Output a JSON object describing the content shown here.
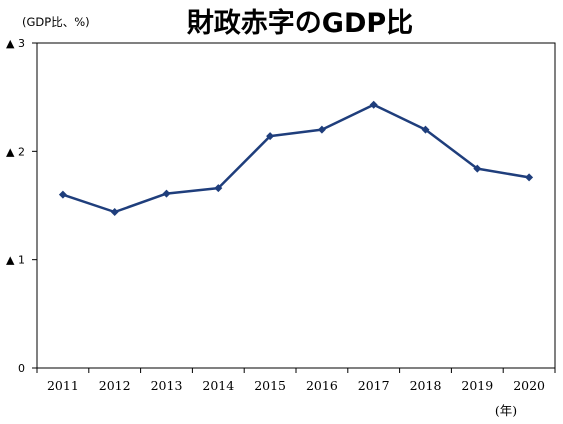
{
  "chart_data": {
    "type": "line",
    "title": "財政赤字のGDP比",
    "unit_label": "(GDP比、%)",
    "xlabel": "(年)",
    "ylabel": "",
    "x": [
      "2011",
      "2012",
      "2013",
      "2014",
      "2015",
      "2016",
      "2017",
      "2018",
      "2019",
      "2020"
    ],
    "series": [
      {
        "values": [
          1.6,
          1.44,
          1.61,
          1.66,
          2.14,
          2.2,
          2.43,
          2.2,
          1.84,
          1.76
        ]
      }
    ],
    "ylim": [
      0,
      3
    ],
    "yticks": [
      0,
      1,
      2,
      3
    ],
    "ytick_labels": [
      "0",
      "▲ 1",
      "▲ 2",
      "▲ 3"
    ],
    "grid": false,
    "legend": "none",
    "colors": {
      "line": "#1f3e7c",
      "axis": "#000000"
    }
  }
}
